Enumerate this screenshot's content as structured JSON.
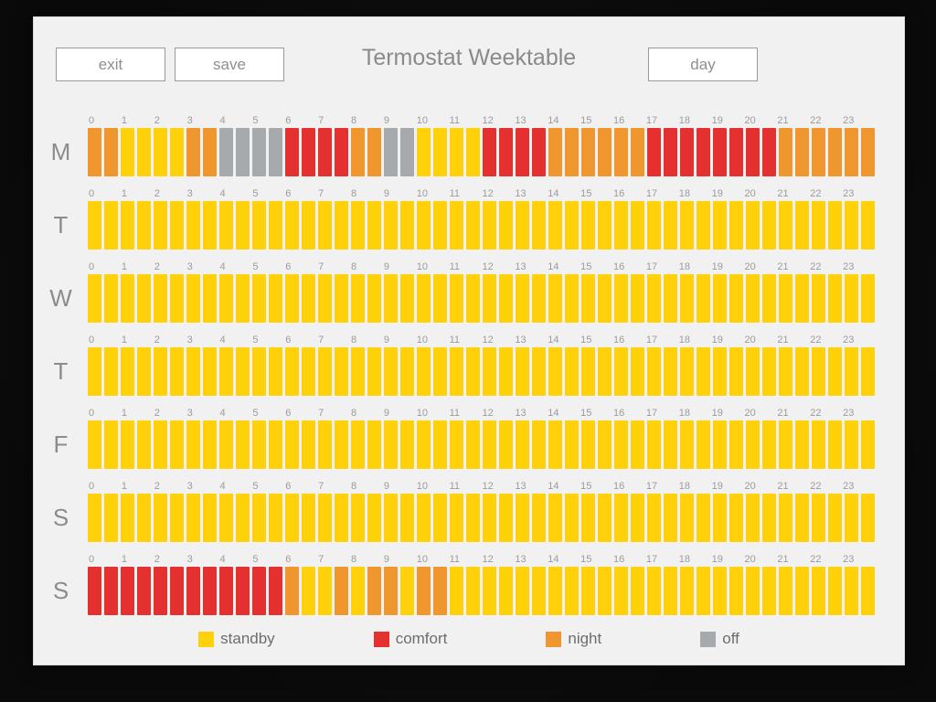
{
  "header": {
    "title": "Termostat Weektable",
    "exit_label": "exit",
    "save_label": "save",
    "day_label": "day"
  },
  "week": {
    "hours": [
      "0",
      "1",
      "2",
      "3",
      "4",
      "5",
      "6",
      "7",
      "8",
      "9",
      "10",
      "11",
      "12",
      "13",
      "14",
      "15",
      "16",
      "17",
      "18",
      "19",
      "20",
      "21",
      "22",
      "23"
    ],
    "halves_per_hour": 2,
    "days": [
      {
        "label": "M",
        "name": "monday",
        "pattern": "OOYYYYOOGGGGRRRROOGGYYYYRRRROOOOOORRRRRRRROOOOOO"
      },
      {
        "label": "T",
        "name": "tuesday",
        "pattern": "YYYYYYYYYYYYYYYYYYYYYYYYYYYYYYYYYYYYYYYYYYYYYYYY"
      },
      {
        "label": "W",
        "name": "wednesday",
        "pattern": "YYYYYYYYYYYYYYYYYYYYYYYYYYYYYYYYYYYYYYYYYYYYYYYY"
      },
      {
        "label": "T",
        "name": "thursday",
        "pattern": "YYYYYYYYYYYYYYYYYYYYYYYYYYYYYYYYYYYYYYYYYYYYYYYY"
      },
      {
        "label": "F",
        "name": "friday",
        "pattern": "YYYYYYYYYYYYYYYYYYYYYYYYYYYYYYYYYYYYYYYYYYYYYYYY"
      },
      {
        "label": "S",
        "name": "saturday",
        "pattern": "YYYYYYYYYYYYYYYYYYYYYYYYYYYYYYYYYYYYYYYYYYYYYYYY"
      },
      {
        "label": "S",
        "name": "sunday",
        "pattern": "RRRRRRRRRRRROYYOYOOYOOYYYYYYYYYYYYYYYYYYYYYYYYYY"
      }
    ]
  },
  "codes": {
    "Y": "#fed10b",
    "R": "#e53030",
    "O": "#f0962e",
    "G": "#a6aaad"
  },
  "legend": {
    "items": [
      {
        "name": "standby",
        "label": "standby",
        "code": "Y",
        "color": "#fed10b"
      },
      {
        "name": "comfort",
        "label": "comfort",
        "code": "R",
        "color": "#e53030"
      },
      {
        "name": "night",
        "label": "night",
        "code": "O",
        "color": "#f0962e"
      },
      {
        "name": "off",
        "label": "off",
        "code": "G",
        "color": "#a6aaad"
      }
    ]
  }
}
